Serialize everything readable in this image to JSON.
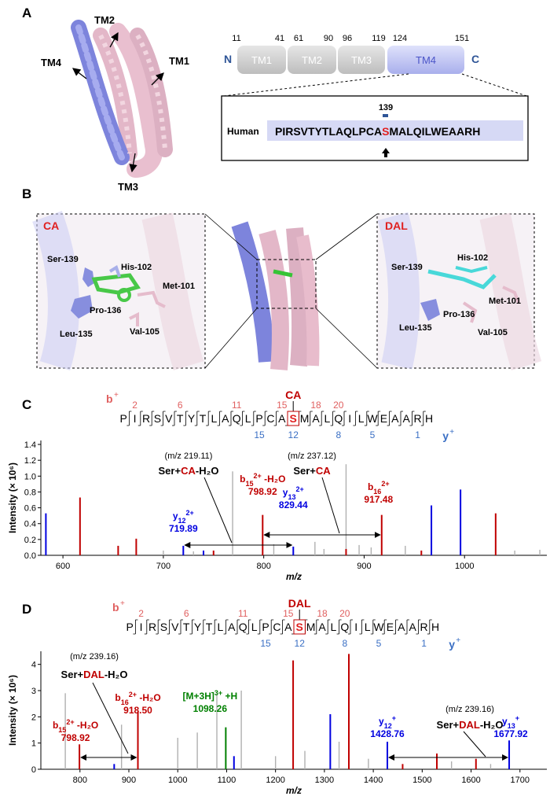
{
  "figure": {
    "panels": {
      "A": "A",
      "B": "B",
      "C": "C",
      "D": "D"
    },
    "panelA": {
      "helix_labels": {
        "tm1": "TM1",
        "tm2": "TM2",
        "tm3": "TM3",
        "tm4": "TM4"
      },
      "topology": {
        "n_label": "N",
        "c_label": "C",
        "segments": [
          "TM1",
          "TM2",
          "TM3",
          "TM4"
        ],
        "positions": [
          "11",
          "41",
          "61",
          "90",
          "96",
          "119",
          "124",
          "151"
        ]
      },
      "inset": {
        "residue_number": "139",
        "species": "Human",
        "seq_before": "PIRSVTYTLAQLPCA",
        "seq_site": "S",
        "seq_after": "MALQILWEAARH"
      }
    },
    "panelB": {
      "left": {
        "ligand": "CA",
        "residues": [
          "Ser-139",
          "His-102",
          "Met-101",
          "Pro-136",
          "Leu-135",
          "Val-105"
        ]
      },
      "right": {
        "ligand": "DAL",
        "residues": [
          "Ser-139",
          "His-102",
          "Met-101",
          "Pro-136",
          "Leu-135",
          "Val-105"
        ]
      }
    },
    "panelC": {
      "b_label": "b",
      "b_sup": "+",
      "y_label": "y",
      "y_sup": "+",
      "mod_label": "CA",
      "sequence": [
        "P",
        "I",
        "R",
        "S",
        "V",
        "T",
        "Y",
        "T",
        "L",
        "A",
        "Q",
        "L",
        "P",
        "C",
        "A",
        "S",
        "M",
        "A",
        "L",
        "Q",
        "I",
        "L",
        "W",
        "E",
        "A",
        "A",
        "R",
        "H"
      ],
      "b_numbers": [
        "2",
        "6",
        "11",
        "15",
        "18",
        "20"
      ],
      "y_numbers": [
        "15",
        "12",
        "8",
        "5",
        "1"
      ],
      "annotations": {
        "ann1_mz": "219.11",
        "ann1_text_pre": "Ser+",
        "ann1_text_mod": "CA",
        "ann1_text_post": "-H₂O",
        "ann2_mz": "237.12",
        "ann2_text_pre": "Ser+",
        "ann2_text_mod": "CA",
        "ann2_text_post": "",
        "peaks": [
          {
            "ion": "y",
            "sub": "12",
            "sup": "2+",
            "mz": "719.89",
            "extra": ""
          },
          {
            "ion": "b",
            "sub": "15",
            "sup": "2+",
            "mz": "798.92",
            "extra": "-H₂O"
          },
          {
            "ion": "y",
            "sub": "13",
            "sup": "2+",
            "mz": "829.44",
            "extra": ""
          },
          {
            "ion": "b",
            "sub": "16",
            "sup": "2+",
            "mz": "917.48",
            "extra": ""
          }
        ]
      }
    },
    "panelD": {
      "b_label": "b",
      "b_sup": "+",
      "y_label": "y",
      "y_sup": "+",
      "mod_label": "DAL",
      "sequence": [
        "P",
        "I",
        "R",
        "S",
        "V",
        "T",
        "Y",
        "T",
        "L",
        "A",
        "Q",
        "L",
        "P",
        "C",
        "A",
        "S",
        "M",
        "A",
        "L",
        "Q",
        "I",
        "L",
        "W",
        "E",
        "A",
        "A",
        "R",
        "H"
      ],
      "b_numbers": [
        "2",
        "6",
        "11",
        "15",
        "18",
        "20"
      ],
      "y_numbers": [
        "15",
        "12",
        "8",
        "5",
        "1"
      ],
      "annotations": {
        "ann1_mz": "239.16",
        "ann1_text_pre": "Ser+",
        "ann1_text_mod": "DAL",
        "ann1_text_post": "-H₂O",
        "ann2_mz": "239.16",
        "ann2_text_pre": "Ser+",
        "ann2_text_mod": "DAL",
        "ann2_text_post": "-H₂O",
        "peaks": [
          {
            "ion": "b",
            "sub": "15",
            "sup": "2+",
            "mz": "798.92",
            "extra": "-H₂O"
          },
          {
            "ion": "b",
            "sub": "16",
            "sup": "2+",
            "mz": "918.50",
            "extra": "-H₂O"
          },
          {
            "ion": "[M+3H]",
            "sub": "",
            "sup": "3+",
            "mz": "1098.26",
            "extra": "+H"
          },
          {
            "ion": "y",
            "sub": "12",
            "sup": "+",
            "mz": "1428.76",
            "extra": ""
          },
          {
            "ion": "y",
            "sub": "13",
            "sup": "+",
            "mz": "1677.92",
            "extra": ""
          }
        ]
      }
    }
  },
  "chart_data": [
    {
      "type": "bar",
      "title": "",
      "xlabel": "m/z",
      "ylabel": "Intensity (× 10⁶)",
      "xlim": [
        578,
        1082
      ],
      "ylim": [
        0,
        1.45
      ],
      "xticks": [
        600,
        700,
        800,
        900,
        1000
      ],
      "yticks": [
        0.0,
        0.2,
        0.4,
        0.6,
        0.8,
        1.0,
        1.2,
        1.4
      ],
      "tick_labels_x": [
        "600",
        "700",
        "800",
        "900",
        "1000"
      ],
      "tick_labels_y": [
        "0.0",
        "0.2",
        "0.4",
        "0.6",
        "0.8",
        "1.0",
        "1.2",
        "1.4"
      ],
      "series": [
        {
          "name": "b",
          "color": "#c00000",
          "x": [
            617,
            655,
            673,
            798.92,
            917.48,
            1031,
            957,
            882,
            750
          ],
          "y": [
            0.73,
            0.12,
            0.21,
            0.51,
            0.51,
            0.53,
            0.06,
            0.08,
            0.06
          ]
        },
        {
          "name": "y",
          "color": "#0000e0",
          "x": [
            583,
            719.89,
            829.44,
            967,
            996,
            740
          ],
          "y": [
            0.53,
            0.12,
            0.11,
            0.63,
            0.83,
            0.06
          ]
        },
        {
          "name": "other",
          "color": "#b0b0b0",
          "x": [
            769,
            882,
            851,
            895,
            907,
            810,
            700,
            730,
            1050,
            1075,
            941,
            860
          ],
          "y": [
            1.06,
            1.15,
            0.17,
            0.13,
            0.1,
            0.14,
            0.06,
            0.05,
            0.06,
            0.07,
            0.12,
            0.08
          ]
        }
      ]
    },
    {
      "type": "bar",
      "title": "",
      "xlabel": "m/z",
      "ylabel": "Intensity (× 10⁶)",
      "xlim": [
        720,
        1755
      ],
      "ylim": [
        0,
        4.5
      ],
      "xticks": [
        800,
        900,
        1000,
        1100,
        1200,
        1300,
        1400,
        1500,
        1600,
        1700
      ],
      "yticks": [
        0,
        1,
        2,
        3,
        4
      ],
      "tick_labels_x": [
        "800",
        "900",
        "1000",
        "1100",
        "1200",
        "1300",
        "1400",
        "1500",
        "1600",
        "1700"
      ],
      "tick_labels_y": [
        "0",
        "1",
        "2",
        "3",
        "4"
      ],
      "series": [
        {
          "name": "b",
          "color": "#c00000",
          "x": [
            798.92,
            918.5,
            1236,
            1350,
            1530,
            1610,
            1460
          ],
          "y": [
            0.95,
            2.2,
            4.15,
            4.4,
            0.6,
            0.4,
            0.2
          ]
        },
        {
          "name": "y",
          "color": "#0000e0",
          "x": [
            1428.76,
            1677.92,
            1312,
            1115,
            870
          ],
          "y": [
            1.05,
            1.1,
            2.1,
            0.5,
            0.2
          ]
        },
        {
          "name": "[M+3H]3++H",
          "color": "#008000",
          "x": [
            1098.26
          ],
          "y": [
            1.6
          ]
        },
        {
          "name": "other",
          "color": "#b0b0b0",
          "x": [
            770,
            885,
            1000,
            1040,
            1080,
            1130,
            1200,
            1260,
            1330,
            1390,
            1560,
            1640
          ],
          "y": [
            2.9,
            1.7,
            1.2,
            1.4,
            2.9,
            3.0,
            0.5,
            0.7,
            1.05,
            0.4,
            0.3,
            0.2
          ]
        }
      ]
    }
  ]
}
